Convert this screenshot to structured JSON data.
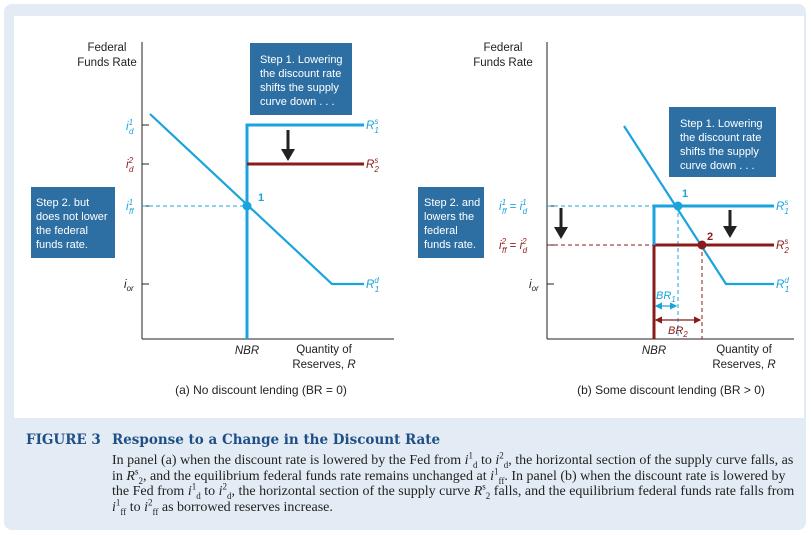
{
  "figure": {
    "label": "FIGURE 3",
    "title": "Response to a Change in the Discount Rate",
    "caption_parts": {
      "p1": "In panel (a) when the discount rate is lowered by the Fed from ",
      "p2": " to ",
      "p3": ", the horizontal section of the supply curve falls, as in ",
      "p4": ", and the equilibrium federal funds rate remains unchanged at ",
      "p5": ". In panel (b) when the discount rate is lowered by the Fed from ",
      "p6": " to ",
      "p7": ", the horizontal section of the supply curve ",
      "p8": " falls, and the equilibrium federal funds rate falls from ",
      "p9": " to ",
      "p10": " as borrowed reserves increase."
    }
  },
  "panel_a": {
    "ylabel_1": "Federal",
    "ylabel_2": "Funds Rate",
    "xlabel_1": "Quantity of",
    "xlabel_2": "Reserves, R",
    "nbr": "NBR",
    "tick_id1": "i¹d",
    "tick_id2": "i²d",
    "tick_iff1": "i¹ff",
    "tick_ior": "ior",
    "rs1": "R^s_1",
    "rs2": "R^s_2",
    "rd1": "R^d_1",
    "point": "1",
    "step1": [
      "Step 1. Lowering",
      "the discount rate",
      "shifts the supply",
      "curve down . . ."
    ],
    "step2": [
      "Step 2. but",
      "does not lower",
      "the federal",
      "funds rate."
    ],
    "caption": "(a) No discount lending (BR = 0)"
  },
  "panel_b": {
    "ylabel_1": "Federal",
    "ylabel_2": "Funds Rate",
    "xlabel_1": "Quantity of",
    "xlabel_2": "Reserves, R",
    "nbr": "NBR",
    "tick_top": "i¹ff = i¹d",
    "tick_mid": "i²ff = i²d",
    "tick_ior": "ior",
    "rs1": "R^s_1",
    "rs2": "R^s_2",
    "rd1": "R^d_1",
    "br1": "BR1",
    "br2": "BR2",
    "point1": "1",
    "point2": "2",
    "step1": [
      "Step 1. Lowering",
      "the discount rate",
      "shifts the supply",
      "curve down . . ."
    ],
    "step2": [
      "Step 2. and",
      "lowers the",
      "federal",
      "funds rate."
    ],
    "caption": "(b) Some discount lending (BR > 0)"
  },
  "colors": {
    "supply_1": "#1aa3dc",
    "supply_2": "#8b1a1a",
    "callout_box": "#2d6fa3",
    "title_color": "#1f4f86",
    "panel_bg": "#e3ecf4"
  }
}
